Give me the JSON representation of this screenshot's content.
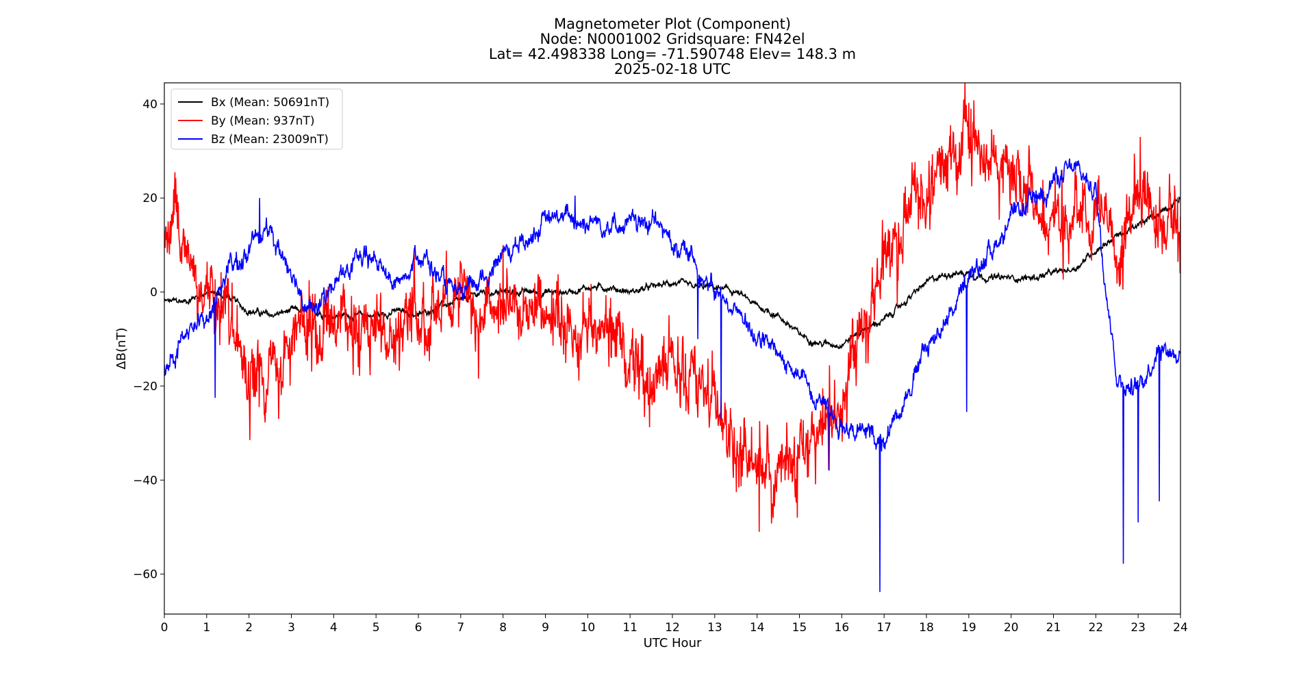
{
  "chart_data": {
    "type": "line",
    "title_lines": [
      "Magnetometer Plot (Component)",
      "Node:  N0001002     Gridsquare:  FN42el",
      "Lat= 42.498338    Long= -71.590748    Elev= 148.3 m",
      "2025-02-18  UTC"
    ],
    "xlabel": "UTC Hour",
    "ylabel": "ΔB(nT)",
    "xlim": [
      0,
      24
    ],
    "ylim": [
      -68.5,
      44.5
    ],
    "xticks": [
      0,
      1,
      2,
      3,
      4,
      5,
      6,
      7,
      8,
      9,
      10,
      11,
      12,
      13,
      14,
      15,
      16,
      17,
      18,
      19,
      20,
      21,
      22,
      23,
      24
    ],
    "yticks": [
      -60,
      -40,
      -20,
      0,
      20,
      40
    ],
    "grid": false,
    "legend_position": "upper-left",
    "series": [
      {
        "name": "Bx (Mean: 50691nT)",
        "color": "#000000",
        "noise": 0.7,
        "x": [
          0,
          0.5,
          1,
          1.5,
          2,
          2.5,
          3,
          3.5,
          4,
          4.5,
          5,
          5.5,
          6,
          6.5,
          7,
          7.5,
          8,
          8.5,
          9,
          9.5,
          10,
          10.5,
          11,
          11.5,
          12,
          12.5,
          13,
          13.5,
          14,
          14.5,
          15,
          15.5,
          16,
          16.5,
          17,
          17.5,
          18,
          18.5,
          19,
          19.5,
          20,
          20.5,
          21,
          21.5,
          22,
          22.5,
          23,
          23.5,
          24
        ],
        "y": [
          -2,
          -2,
          0,
          -1,
          -4,
          -5,
          -4,
          -4,
          -5,
          -5,
          -5,
          -4,
          -5,
          -3,
          -2,
          0,
          0,
          0,
          0,
          0,
          1,
          1,
          0,
          1,
          2,
          1,
          1,
          0,
          -3,
          -5,
          -9,
          -11,
          -11,
          -8,
          -6,
          -2,
          2,
          4,
          4,
          3,
          3,
          3,
          4,
          5,
          9,
          12,
          14,
          17,
          20
        ],
        "spikes": []
      },
      {
        "name": "By (Mean: 937nT)",
        "color": "#ff0000",
        "noise": 6,
        "x": [
          0,
          0.5,
          1,
          1.5,
          2,
          2.5,
          3,
          3.5,
          4,
          4.5,
          5,
          5.5,
          6,
          6.5,
          7,
          7.5,
          8,
          8.5,
          9,
          9.5,
          10,
          10.5,
          11,
          11.5,
          12,
          12.5,
          13,
          13.5,
          14,
          14.5,
          15,
          15.5,
          16,
          16.5,
          17,
          17.5,
          18,
          18.5,
          19,
          19.5,
          20,
          20.5,
          21,
          21.5,
          22,
          22.5,
          23,
          23.5,
          24
        ],
        "y": [
          12,
          10,
          3,
          -5,
          -20,
          -15,
          -10,
          -8,
          -5,
          -7,
          -10,
          -5,
          -2,
          -3,
          2,
          -2,
          -5,
          -5,
          -5,
          -7,
          -8,
          -10,
          -12,
          -15,
          -17,
          -20,
          -25,
          -32,
          -38,
          -40,
          -36,
          -30,
          -20,
          -5,
          5,
          15,
          22,
          27,
          30,
          30,
          25,
          20,
          15,
          17,
          20,
          10,
          18,
          15,
          12
        ],
        "spikes": [
          [
            2.02,
            -31.5
          ],
          [
            2.7,
            -27
          ],
          [
            8.0,
            10
          ],
          [
            14.05,
            -51
          ],
          [
            14.95,
            -48
          ],
          [
            19.05,
            39
          ],
          [
            23.05,
            33
          ],
          [
            21.2,
            26
          ]
        ]
      },
      {
        "name": "Bz (Mean: 23009nT)",
        "color": "#0000ff",
        "noise": 2.2,
        "x": [
          0,
          0.5,
          1,
          1.5,
          2,
          2.2,
          2.5,
          3,
          3.5,
          4,
          4.5,
          5,
          5.5,
          6,
          6.5,
          7,
          7.5,
          8,
          8.5,
          9,
          9.5,
          10,
          10.5,
          11,
          11.5,
          12,
          12.5,
          13,
          13.5,
          14,
          14.5,
          15,
          15.5,
          16,
          16.5,
          17,
          17.5,
          18,
          18.5,
          19,
          19.5,
          20,
          20.5,
          21,
          21.5,
          22,
          22.2,
          22.5,
          23,
          23.5,
          24
        ],
        "y": [
          -16,
          -9,
          -6,
          5,
          8,
          14,
          12,
          5,
          -5,
          2,
          6,
          7,
          1,
          9,
          3,
          -2,
          3,
          8,
          11,
          15,
          16,
          15,
          15,
          14,
          15,
          11,
          7,
          0,
          -4,
          -9,
          -14,
          -18,
          -22,
          -28,
          -30,
          -31,
          -22,
          -12,
          -5,
          2,
          9,
          15,
          19,
          24,
          26,
          22,
          5,
          -18,
          -21,
          -11,
          -13
        ],
        "spikes": [
          [
            1.2,
            -22.5
          ],
          [
            9.7,
            20.5
          ],
          [
            12.6,
            -10
          ],
          [
            13.15,
            -27
          ],
          [
            15.7,
            -38
          ],
          [
            16.9,
            -63.8
          ],
          [
            18.95,
            -25.5
          ],
          [
            22.65,
            -57.8
          ],
          [
            23.0,
            -49
          ],
          [
            23.5,
            -44.5
          ],
          [
            2.25,
            20
          ]
        ]
      }
    ]
  }
}
